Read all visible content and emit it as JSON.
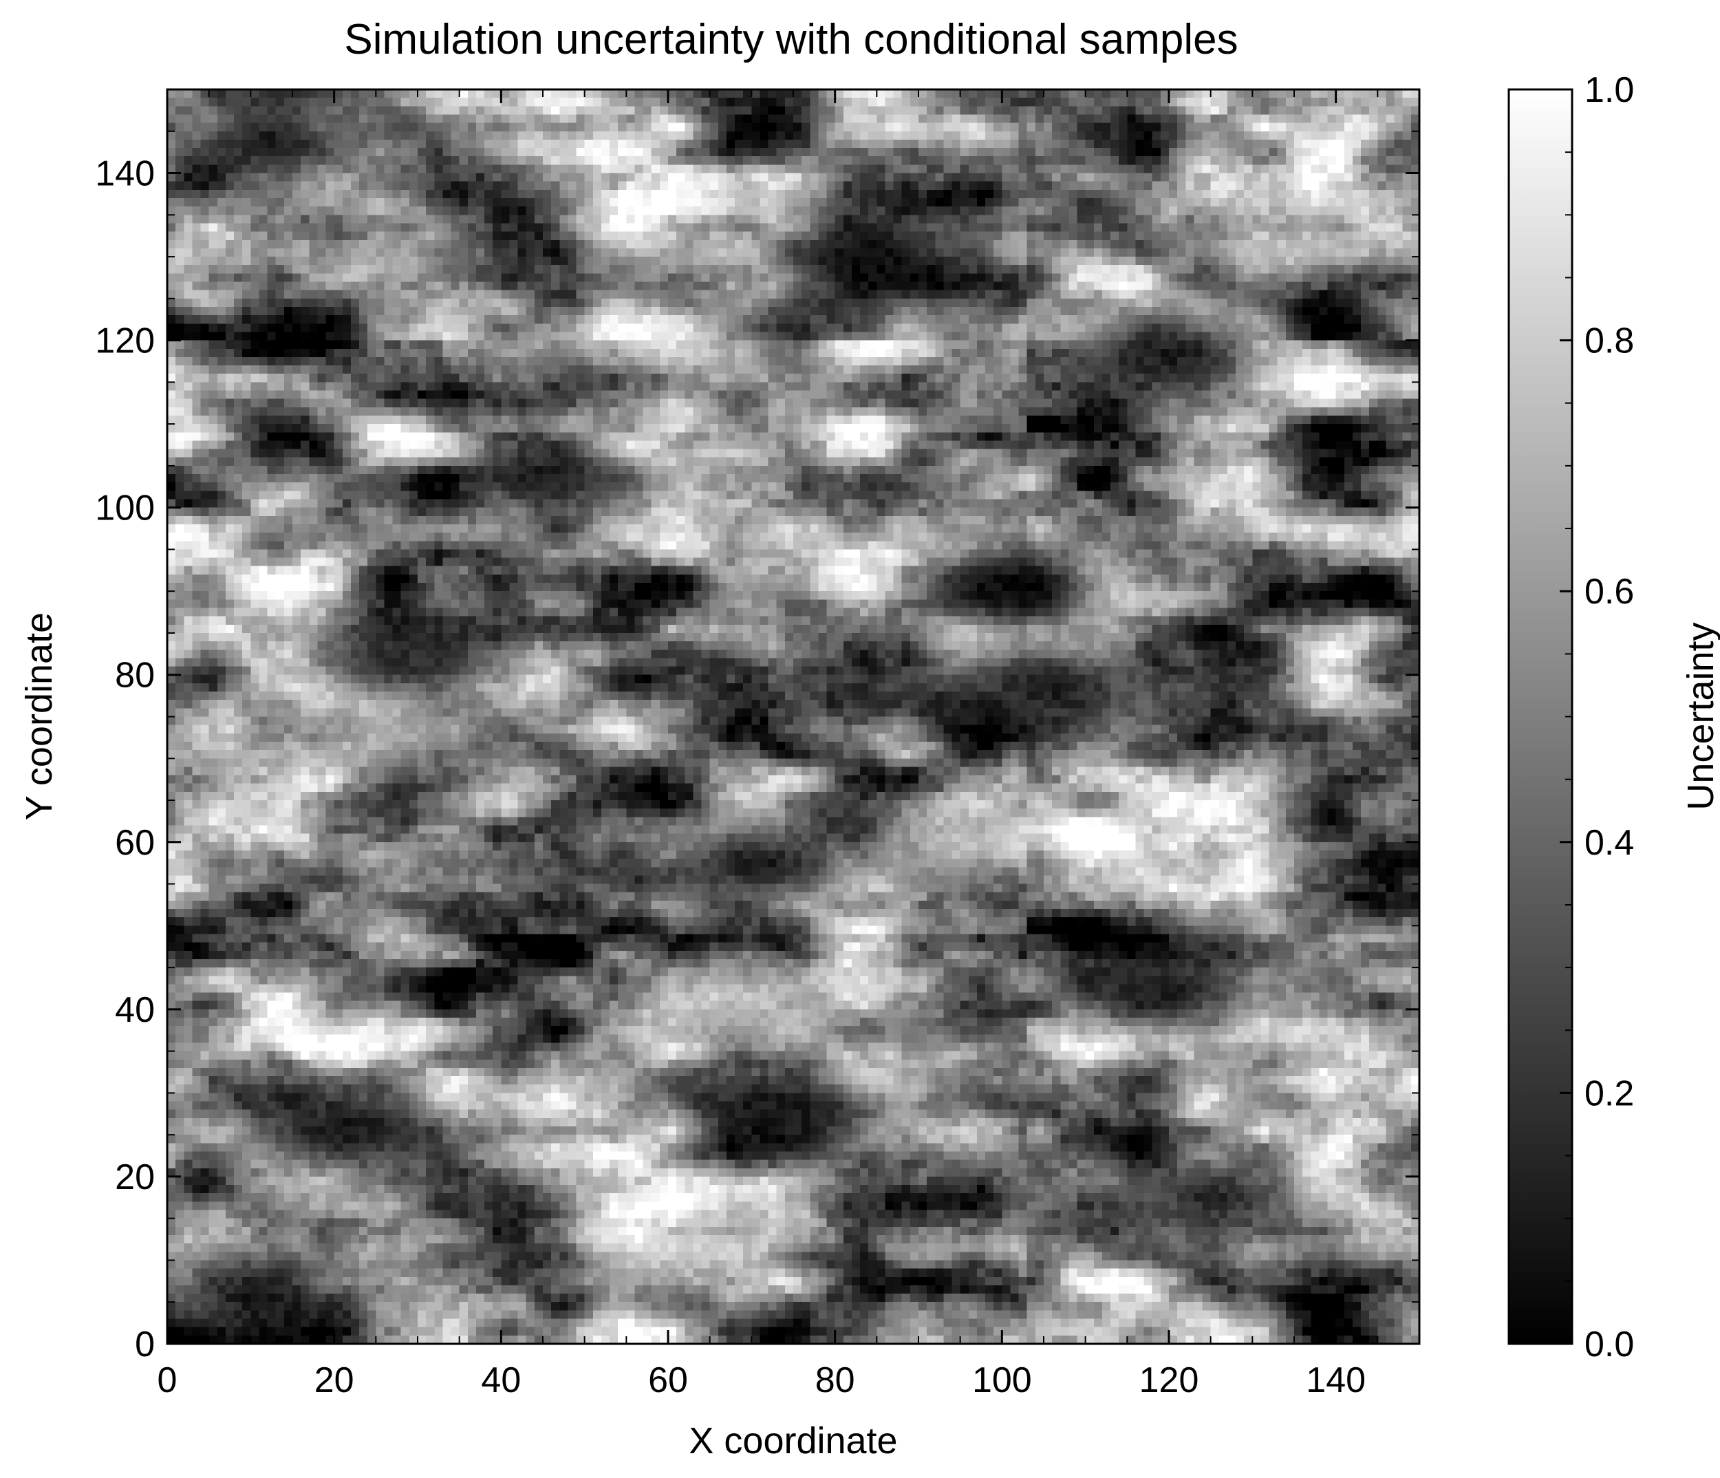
{
  "chart_data": {
    "type": "heatmap",
    "title": "Simulation uncertainty with conditional samples",
    "xlabel": "X coordinate",
    "ylabel": "Y coordinate",
    "xlim": [
      0,
      150
    ],
    "ylim": [
      0,
      150
    ],
    "x_ticks": [
      0,
      20,
      40,
      60,
      80,
      100,
      120,
      140
    ],
    "y_ticks": [
      0,
      20,
      40,
      60,
      80,
      100,
      120,
      140
    ],
    "grid": false,
    "origin": "lower",
    "colormap": "gray",
    "grid_shape": [
      150,
      150
    ],
    "colorbar": {
      "label": "Uncertainty",
      "range": [
        0.0,
        1.0
      ],
      "ticks": [
        0.0,
        0.2,
        0.4,
        0.6,
        0.8,
        1.0
      ],
      "tick_labels": [
        "0.0",
        "0.2",
        "0.4",
        "0.6",
        "0.8",
        "1.0"
      ],
      "low_color": "#000000",
      "high_color": "#ffffff"
    },
    "approx_dark_regions": [
      {
        "x": 12,
        "y": 143,
        "value": 0.1
      },
      {
        "x": 85,
        "y": 129,
        "value": 0.05
      },
      {
        "x": 120,
        "y": 118,
        "value": 0.1
      },
      {
        "x": 45,
        "y": 103,
        "value": 0.1
      },
      {
        "x": 102,
        "y": 90,
        "value": 0.03
      },
      {
        "x": 105,
        "y": 78,
        "value": 0.1
      },
      {
        "x": 27,
        "y": 81,
        "value": 0.15
      },
      {
        "x": 70,
        "y": 57,
        "value": 0.08
      },
      {
        "x": 118,
        "y": 42,
        "value": 0.1
      },
      {
        "x": 20,
        "y": 25,
        "value": 0.08
      },
      {
        "x": 75,
        "y": 27,
        "value": 0.1
      },
      {
        "x": 125,
        "y": 17,
        "value": 0.15
      },
      {
        "x": 10,
        "y": 5,
        "value": 0.1
      }
    ],
    "approx_bright_regions": [
      {
        "x": 60,
        "y": 120,
        "value": 0.95
      },
      {
        "x": 25,
        "y": 72,
        "value": 0.95
      },
      {
        "x": 70,
        "y": 40,
        "value": 0.9
      },
      {
        "x": 60,
        "y": 10,
        "value": 0.9
      },
      {
        "x": 135,
        "y": 130,
        "value": 0.9
      },
      {
        "x": 95,
        "y": 60,
        "value": 0.9
      }
    ]
  }
}
